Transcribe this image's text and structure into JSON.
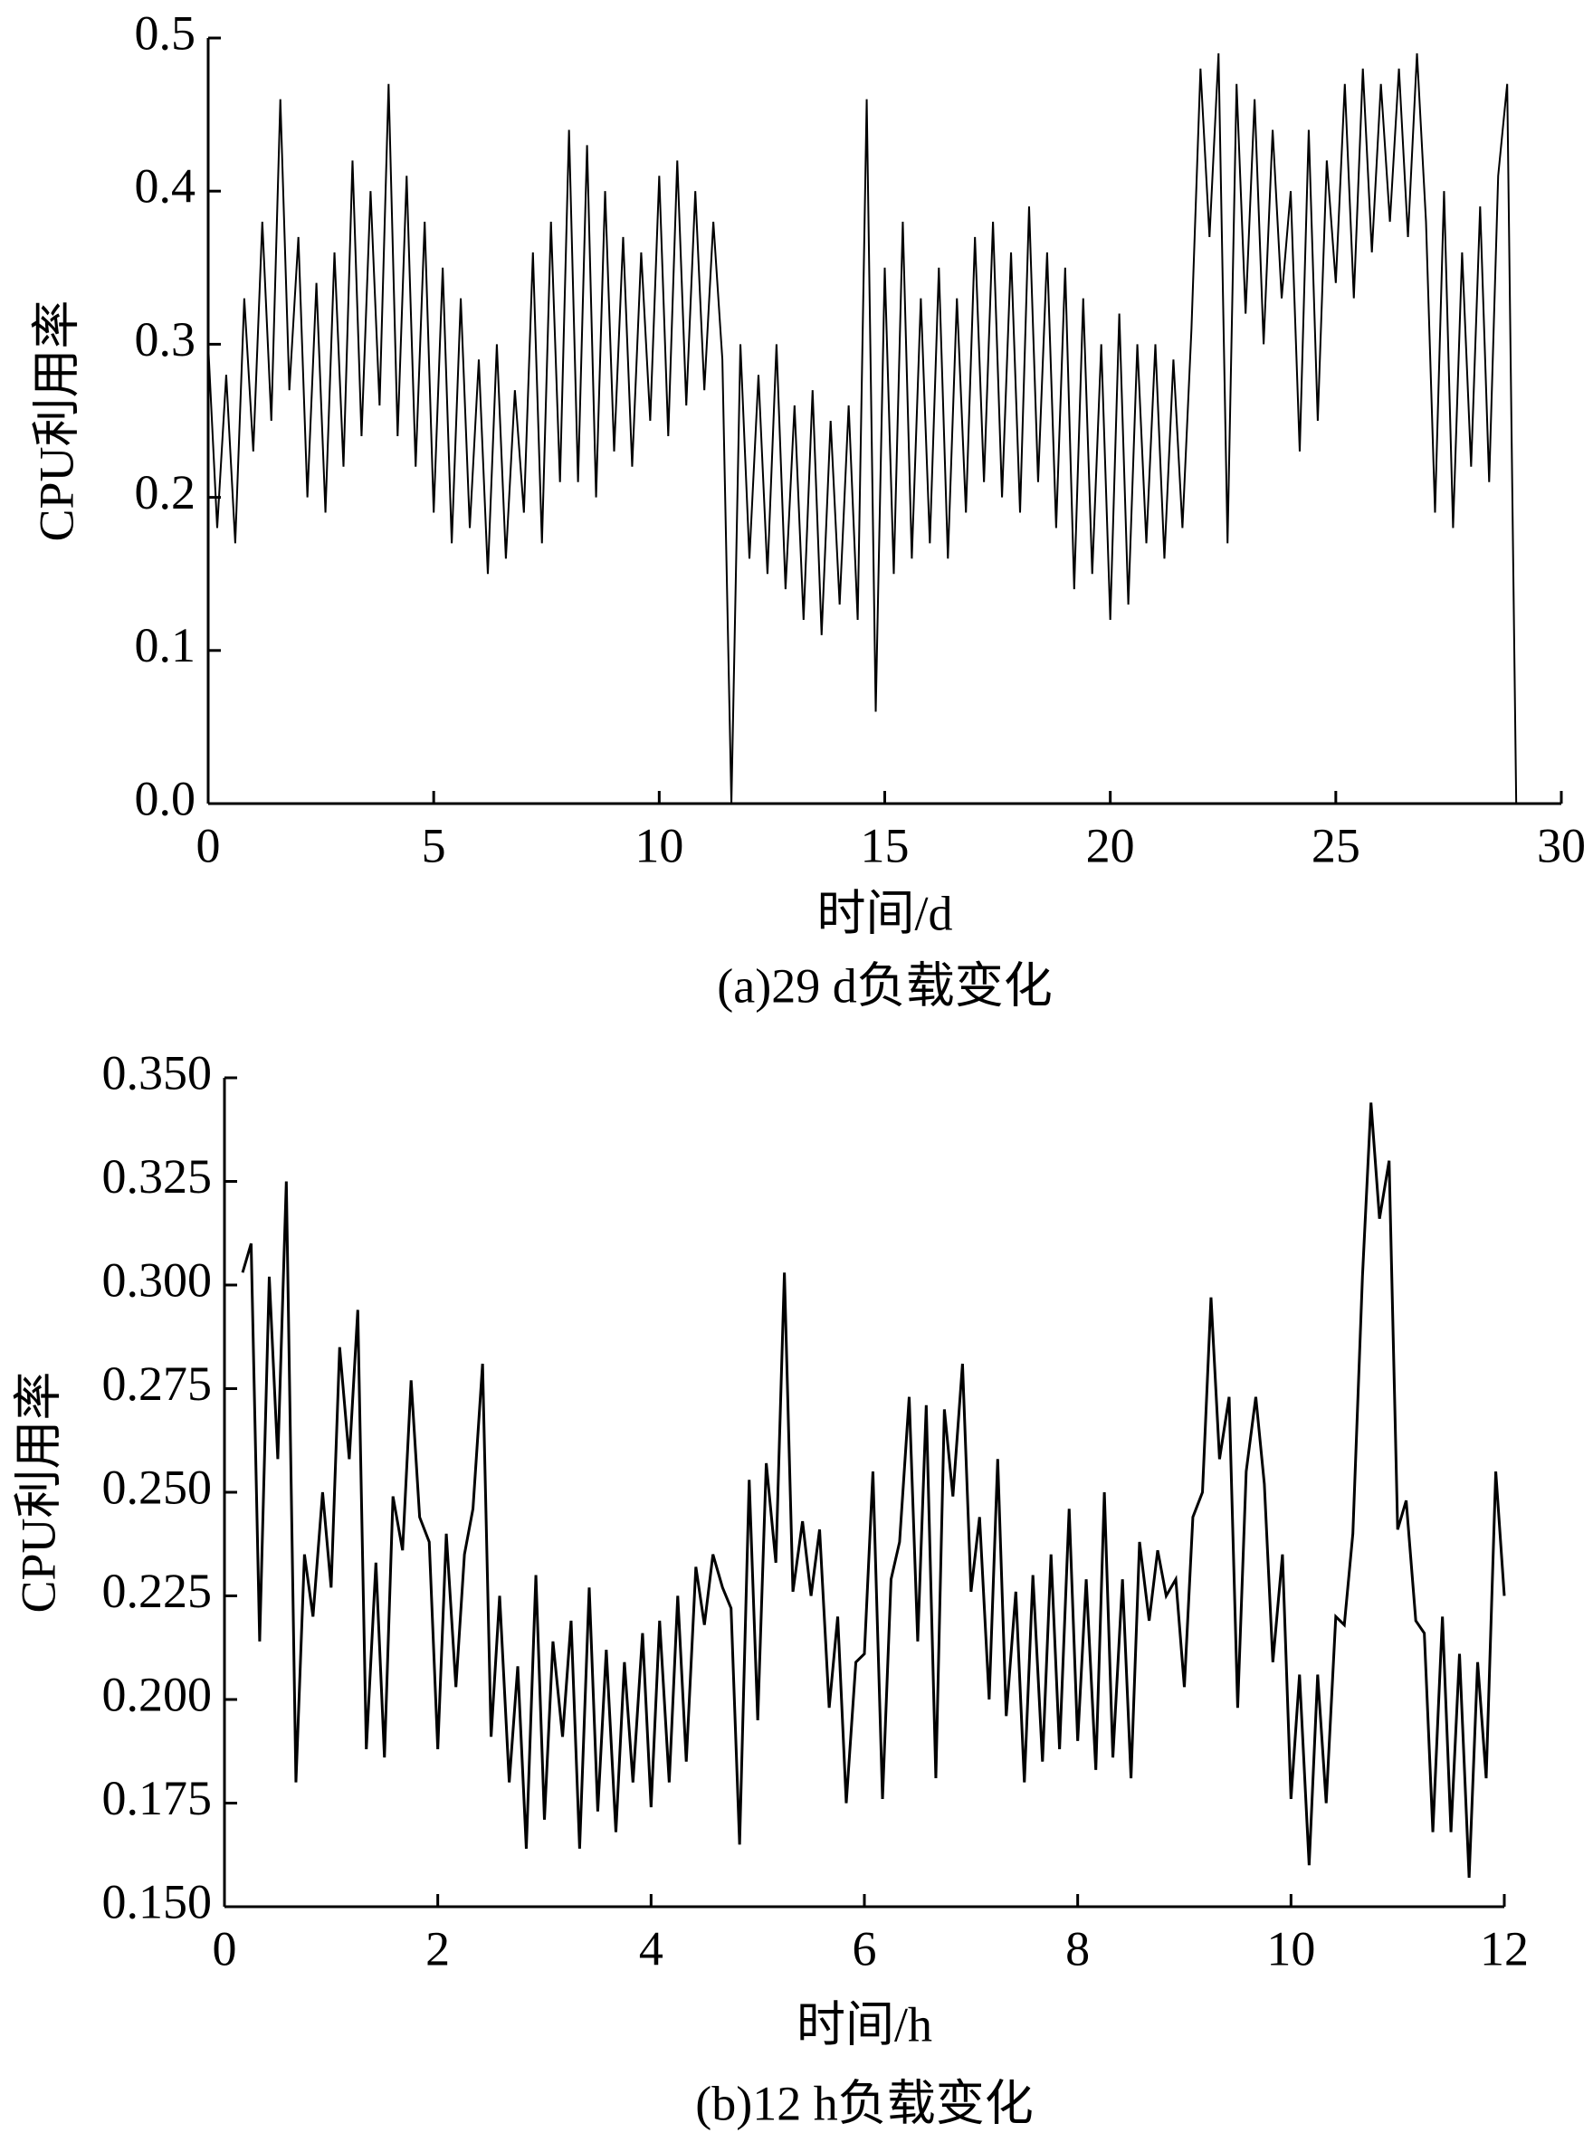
{
  "chart_data": [
    {
      "type": "line",
      "y_label": "CPU利用率",
      "x_label": "时间/d",
      "caption": "(a)29 d负载变化",
      "color": "#000000",
      "x": [
        0,
        0.2,
        0.4,
        0.6,
        0.8,
        1,
        1.2,
        1.4,
        1.6,
        1.8,
        2,
        2.2,
        2.4,
        2.6,
        2.8,
        3,
        3.2,
        3.4,
        3.6,
        3.8,
        4,
        4.2,
        4.4,
        4.6,
        4.8,
        5,
        5.2,
        5.4,
        5.6,
        5.8,
        6,
        6.2,
        6.4,
        6.6,
        6.8,
        7,
        7.2,
        7.4,
        7.6,
        7.8,
        8,
        8.2,
        8.4,
        8.6,
        8.8,
        9,
        9.2,
        9.4,
        9.6,
        9.8,
        10,
        10.2,
        10.4,
        10.6,
        10.8,
        11,
        11.2,
        11.4,
        11.6,
        11.8,
        12,
        12.2,
        12.4,
        12.6,
        12.8,
        13,
        13.2,
        13.4,
        13.6,
        13.8,
        14,
        14.2,
        14.4,
        14.6,
        14.8,
        15,
        15.2,
        15.4,
        15.6,
        15.8,
        16,
        16.2,
        16.4,
        16.6,
        16.8,
        17,
        17.2,
        17.4,
        17.6,
        17.8,
        18,
        18.2,
        18.4,
        18.6,
        18.8,
        19,
        19.2,
        19.4,
        19.6,
        19.8,
        20,
        20.2,
        20.4,
        20.6,
        20.8,
        21,
        21.2,
        21.4,
        21.6,
        21.8,
        22,
        22.2,
        22.4,
        22.6,
        22.8,
        23,
        23.2,
        23.4,
        23.6,
        23.8,
        24,
        24.2,
        24.4,
        24.6,
        24.8,
        25,
        25.2,
        25.4,
        25.6,
        25.8,
        26,
        26.2,
        26.4,
        26.6,
        26.8,
        27,
        27.2,
        27.4,
        27.6,
        27.8,
        28,
        28.2,
        28.4,
        28.6,
        28.8,
        29
      ],
      "values": [
        0.3,
        0.18,
        0.28,
        0.17,
        0.33,
        0.23,
        0.38,
        0.25,
        0.46,
        0.27,
        0.37,
        0.2,
        0.34,
        0.19,
        0.36,
        0.22,
        0.42,
        0.24,
        0.4,
        0.26,
        0.47,
        0.24,
        0.41,
        0.22,
        0.38,
        0.19,
        0.35,
        0.17,
        0.33,
        0.18,
        0.29,
        0.15,
        0.3,
        0.16,
        0.27,
        0.19,
        0.36,
        0.17,
        0.38,
        0.21,
        0.44,
        0.21,
        0.43,
        0.2,
        0.4,
        0.23,
        0.37,
        0.22,
        0.36,
        0.25,
        0.41,
        0.24,
        0.42,
        0.26,
        0.4,
        0.27,
        0.38,
        0.29,
        0.0,
        0.3,
        0.16,
        0.28,
        0.15,
        0.3,
        0.14,
        0.26,
        0.12,
        0.27,
        0.11,
        0.25,
        0.13,
        0.26,
        0.12,
        0.46,
        0.06,
        0.35,
        0.15,
        0.38,
        0.16,
        0.33,
        0.17,
        0.35,
        0.16,
        0.33,
        0.19,
        0.37,
        0.21,
        0.38,
        0.2,
        0.36,
        0.19,
        0.39,
        0.21,
        0.36,
        0.18,
        0.35,
        0.14,
        0.33,
        0.15,
        0.3,
        0.12,
        0.32,
        0.13,
        0.3,
        0.17,
        0.3,
        0.16,
        0.29,
        0.18,
        0.31,
        0.48,
        0.37,
        0.49,
        0.17,
        0.47,
        0.32,
        0.46,
        0.3,
        0.44,
        0.33,
        0.4,
        0.23,
        0.44,
        0.25,
        0.42,
        0.34,
        0.47,
        0.33,
        0.48,
        0.36,
        0.47,
        0.38,
        0.48,
        0.37,
        0.49,
        0.38,
        0.19,
        0.4,
        0.18,
        0.36,
        0.22,
        0.39,
        0.21,
        0.41,
        0.47,
        0.0
      ],
      "xlim": [
        0,
        30
      ],
      "xticks": [
        0,
        5,
        10,
        15,
        20,
        25,
        30
      ],
      "ylim": [
        0,
        0.5
      ],
      "yticks": [
        {
          "value": 0,
          "label": "0.0"
        },
        0.1,
        0.2,
        0.3,
        0.4,
        0.5
      ]
    },
    {
      "type": "line",
      "y_label": "CPU利用率",
      "x_label": "时间/h",
      "caption": "(b)12 h负载变化",
      "color": "#000000",
      "x": [
        0.17,
        0.25,
        0.33,
        0.42,
        0.5,
        0.58,
        0.67,
        0.75,
        0.83,
        0.92,
        1.0,
        1.08,
        1.17,
        1.25,
        1.33,
        1.42,
        1.5,
        1.58,
        1.67,
        1.75,
        1.83,
        1.92,
        2.0,
        2.08,
        2.17,
        2.25,
        2.33,
        2.42,
        2.5,
        2.58,
        2.67,
        2.75,
        2.83,
        2.92,
        3.0,
        3.08,
        3.17,
        3.25,
        3.33,
        3.42,
        3.5,
        3.58,
        3.67,
        3.75,
        3.83,
        3.92,
        4.0,
        4.08,
        4.17,
        4.25,
        4.33,
        4.42,
        4.5,
        4.58,
        4.67,
        4.75,
        4.83,
        4.92,
        5.0,
        5.08,
        5.17,
        5.25,
        5.33,
        5.42,
        5.5,
        5.58,
        5.67,
        5.75,
        5.83,
        5.92,
        6.0,
        6.08,
        6.17,
        6.25,
        6.33,
        6.42,
        6.5,
        6.58,
        6.67,
        6.75,
        6.83,
        6.92,
        7.0,
        7.08,
        7.17,
        7.25,
        7.33,
        7.42,
        7.5,
        7.58,
        7.67,
        7.75,
        7.83,
        7.92,
        8.0,
        8.08,
        8.17,
        8.25,
        8.33,
        8.42,
        8.5,
        8.58,
        8.67,
        8.75,
        8.83,
        8.92,
        9.0,
        9.08,
        9.17,
        9.25,
        9.33,
        9.42,
        9.5,
        9.58,
        9.67,
        9.75,
        9.83,
        9.92,
        10.0,
        10.08,
        10.17,
        10.25,
        10.33,
        10.42,
        10.5,
        10.58,
        10.67,
        10.75,
        10.83,
        10.92,
        11.0,
        11.08,
        11.17,
        11.25,
        11.33,
        11.42,
        11.5,
        11.58,
        11.67,
        11.75,
        11.83,
        11.92,
        12.0
      ],
      "values": [
        0.303,
        0.31,
        0.214,
        0.302,
        0.258,
        0.325,
        0.18,
        0.235,
        0.22,
        0.25,
        0.227,
        0.285,
        0.258,
        0.294,
        0.188,
        0.233,
        0.186,
        0.249,
        0.236,
        0.277,
        0.244,
        0.238,
        0.188,
        0.24,
        0.203,
        0.235,
        0.246,
        0.281,
        0.191,
        0.225,
        0.18,
        0.208,
        0.164,
        0.23,
        0.171,
        0.214,
        0.191,
        0.219,
        0.164,
        0.227,
        0.173,
        0.212,
        0.168,
        0.209,
        0.18,
        0.216,
        0.174,
        0.219,
        0.18,
        0.225,
        0.185,
        0.232,
        0.218,
        0.235,
        0.227,
        0.222,
        0.165,
        0.253,
        0.195,
        0.257,
        0.233,
        0.303,
        0.226,
        0.243,
        0.225,
        0.241,
        0.198,
        0.22,
        0.175,
        0.209,
        0.211,
        0.255,
        0.176,
        0.229,
        0.238,
        0.273,
        0.214,
        0.271,
        0.181,
        0.27,
        0.249,
        0.281,
        0.226,
        0.244,
        0.2,
        0.258,
        0.196,
        0.226,
        0.18,
        0.23,
        0.185,
        0.235,
        0.188,
        0.246,
        0.19,
        0.229,
        0.183,
        0.25,
        0.186,
        0.229,
        0.181,
        0.238,
        0.219,
        0.236,
        0.225,
        0.229,
        0.203,
        0.244,
        0.25,
        0.297,
        0.258,
        0.273,
        0.198,
        0.255,
        0.273,
        0.252,
        0.209,
        0.235,
        0.176,
        0.206,
        0.16,
        0.206,
        0.175,
        0.22,
        0.218,
        0.24,
        0.302,
        0.344,
        0.316,
        0.33,
        0.241,
        0.248,
        0.219,
        0.216,
        0.168,
        0.22,
        0.168,
        0.211,
        0.157,
        0.209,
        0.181,
        0.255,
        0.225
      ],
      "xlim": [
        0,
        12
      ],
      "xticks": [
        0,
        2,
        4,
        6,
        8,
        10,
        12
      ],
      "ylim": [
        0.15,
        0.35
      ],
      "yticks": [
        {
          "value": 0.15,
          "label": "0.150"
        },
        0.175,
        {
          "value": 0.2,
          "label": "0.200"
        },
        0.225,
        {
          "value": 0.25,
          "label": "0.250"
        },
        0.275,
        {
          "value": 0.3,
          "label": "0.300"
        },
        0.325,
        {
          "value": 0.35,
          "label": "0.350"
        }
      ]
    }
  ]
}
